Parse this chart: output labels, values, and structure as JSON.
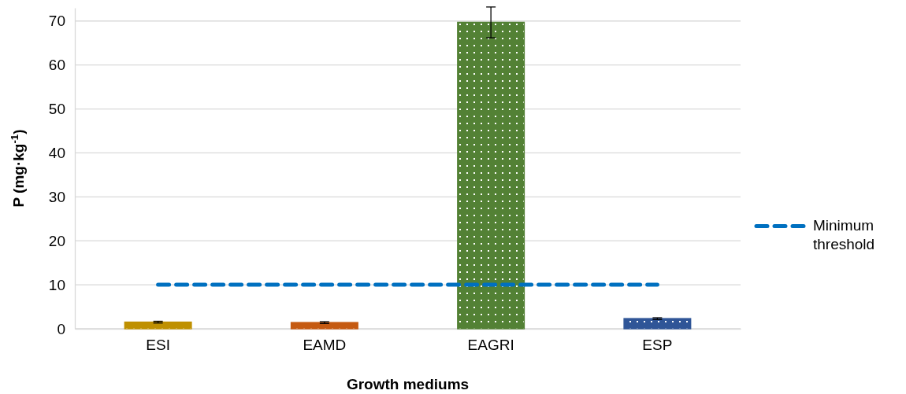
{
  "chart_data": {
    "type": "bar",
    "xlabel": "Growth mediums",
    "ylabel": "P (mg·kg$^{-1}$)",
    "categories": [
      "ESI",
      "EAMD",
      "EAGRI",
      "ESP"
    ],
    "series": [
      {
        "colors": [
          "#bf9000",
          "#c55a11",
          "#538135",
          "#2f5597"
        ],
        "values": [
          1.5,
          1.4,
          69.7,
          2.3
        ],
        "errors": [
          0.2,
          0.2,
          3.5,
          0.2
        ]
      },
      {
        "type": "line",
        "name": "Minimum threshold",
        "color": "#0070c0",
        "values": [
          10,
          10,
          10,
          10
        ],
        "line_style": "dashed",
        "marker": "none"
      }
    ],
    "ylim": [
      0,
      73
    ],
    "yticks": [
      0,
      10,
      20,
      30,
      40,
      50,
      60,
      70
    ],
    "grid": "y",
    "legend": "right"
  }
}
